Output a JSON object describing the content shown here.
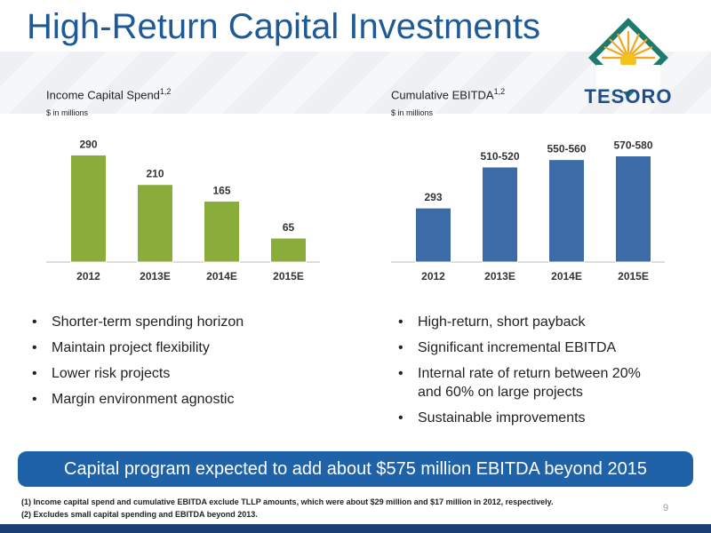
{
  "title": "High-Return Capital Investments",
  "logo": {
    "text": "TESORO"
  },
  "chart_data": [
    {
      "type": "bar",
      "title": "Income Capital Spend",
      "title_sup": "1,2",
      "unit": "$ in millions",
      "categories": [
        "2012",
        "2013E",
        "2014E",
        "2015E"
      ],
      "values": [
        290,
        210,
        165,
        65
      ],
      "value_labels": [
        "290",
        "210",
        "165",
        "65"
      ],
      "color": "#8aac3a",
      "ylim": [
        0,
        320
      ]
    },
    {
      "type": "bar",
      "title": "Cumulative EBITDA",
      "title_sup": "1,2",
      "unit": "$ in millions",
      "categories": [
        "2012",
        "2013E",
        "2014E",
        "2015E"
      ],
      "values": [
        293,
        515,
        555,
        575
      ],
      "value_labels": [
        "293",
        "510-520",
        "550-560",
        "570-580"
      ],
      "color": "#3d6ba8",
      "ylim": [
        0,
        640
      ]
    }
  ],
  "bullets_left": [
    "Shorter-term spending horizon",
    "Maintain project flexibility",
    "Lower risk projects",
    "Margin environment agnostic"
  ],
  "bullets_right": [
    "High-return, short payback",
    "Significant incremental EBITDA",
    "Internal rate of return between 20% and 60% on large projects",
    "Sustainable improvements"
  ],
  "banner": "Capital program expected to add about $575 million EBITDA beyond 2015",
  "footnotes": [
    "(1)  Income capital spend and cumulative EBITDA exclude TLLP amounts, which were about $29 million and $17 million in 2012, respectively.",
    "(2)  Excludes small capital spending and EBITDA beyond 2013."
  ],
  "page_number": "9"
}
